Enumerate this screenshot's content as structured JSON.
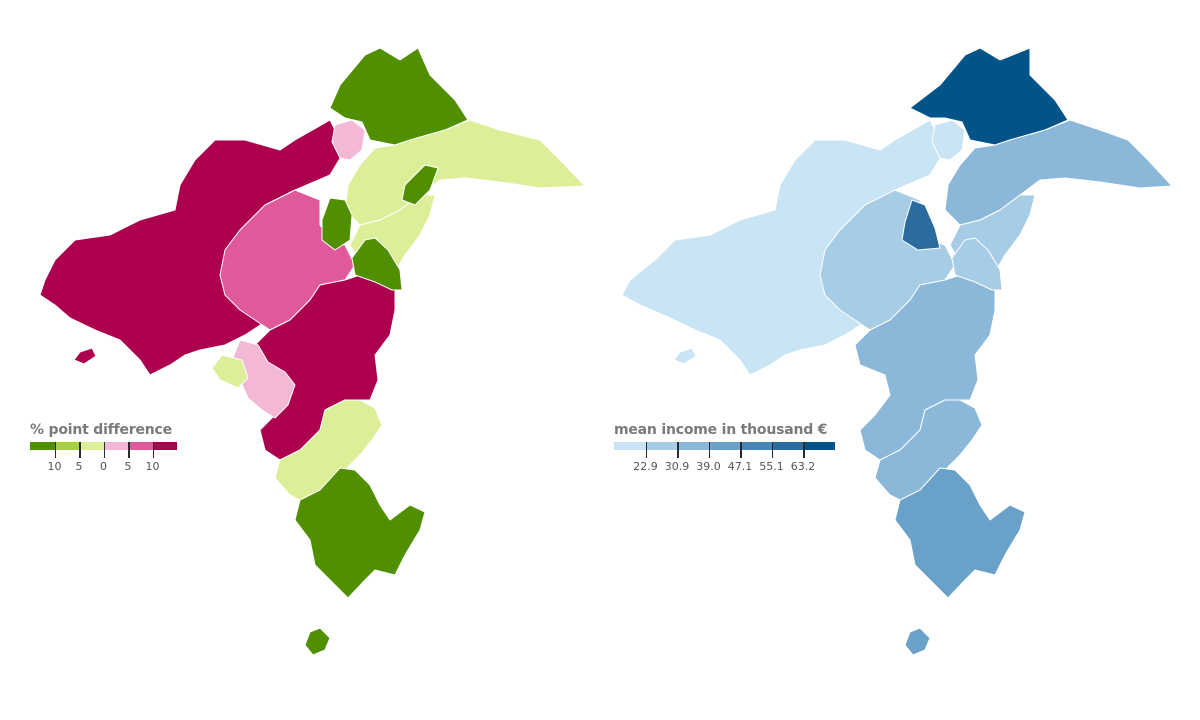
{
  "left_map": {
    "legend_title": "% point difference",
    "legend_labels": [
      "10",
      "5",
      "0",
      "5",
      "10"
    ],
    "scale_colors": [
      "#4f8f00",
      "#a6d13c",
      "#dcef98",
      "#f3b8d6",
      "#e05a9b",
      "#ac004e"
    ],
    "regions": [
      {
        "id": "north-upper",
        "class": 0
      },
      {
        "id": "north-east",
        "class": 2
      },
      {
        "id": "east-central",
        "class": 2
      },
      {
        "id": "east-lower",
        "class": 2
      },
      {
        "id": "center-pink",
        "class": 4
      },
      {
        "id": "west-main",
        "class": 5
      },
      {
        "id": "south-east",
        "class": 5
      },
      {
        "id": "south-coast",
        "class": 2
      },
      {
        "id": "south-peninsula",
        "class": 0
      },
      {
        "id": "island",
        "class": 0
      },
      {
        "id": "east-green-1",
        "class": 0
      },
      {
        "id": "east-green-2",
        "class": 0
      },
      {
        "id": "east-green-3",
        "class": 0
      },
      {
        "id": "top-pink",
        "class": 3
      },
      {
        "id": "coast-pink",
        "class": 3
      },
      {
        "id": "coast-yellow",
        "class": 2
      },
      {
        "id": "west-islet",
        "class": 5
      }
    ]
  },
  "right_map": {
    "legend_title": "mean income in thousand €",
    "legend_labels": [
      "22.9",
      "30.9",
      "39.0",
      "47.1",
      "55.1",
      "63.2"
    ],
    "scale_colors": [
      "#c9e4f5",
      "#a7cde6",
      "#8bb8d8",
      "#6aa1c8",
      "#4a86b5",
      "#2a6c9f",
      "#025488"
    ],
    "regions": [
      {
        "id": "north-upper",
        "class": 6
      },
      {
        "id": "north-east",
        "class": 2
      },
      {
        "id": "east-central",
        "class": 1
      },
      {
        "id": "east-lower",
        "class": 1
      },
      {
        "id": "center",
        "class": 1
      },
      {
        "id": "west-main",
        "class": 0
      },
      {
        "id": "south-east",
        "class": 2
      },
      {
        "id": "south-coast",
        "class": 2
      },
      {
        "id": "south-peninsula",
        "class": 3
      },
      {
        "id": "island",
        "class": 3
      },
      {
        "id": "east-dark",
        "class": 5
      },
      {
        "id": "north-west-light",
        "class": 0
      },
      {
        "id": "west-islet",
        "class": 0
      }
    ]
  }
}
